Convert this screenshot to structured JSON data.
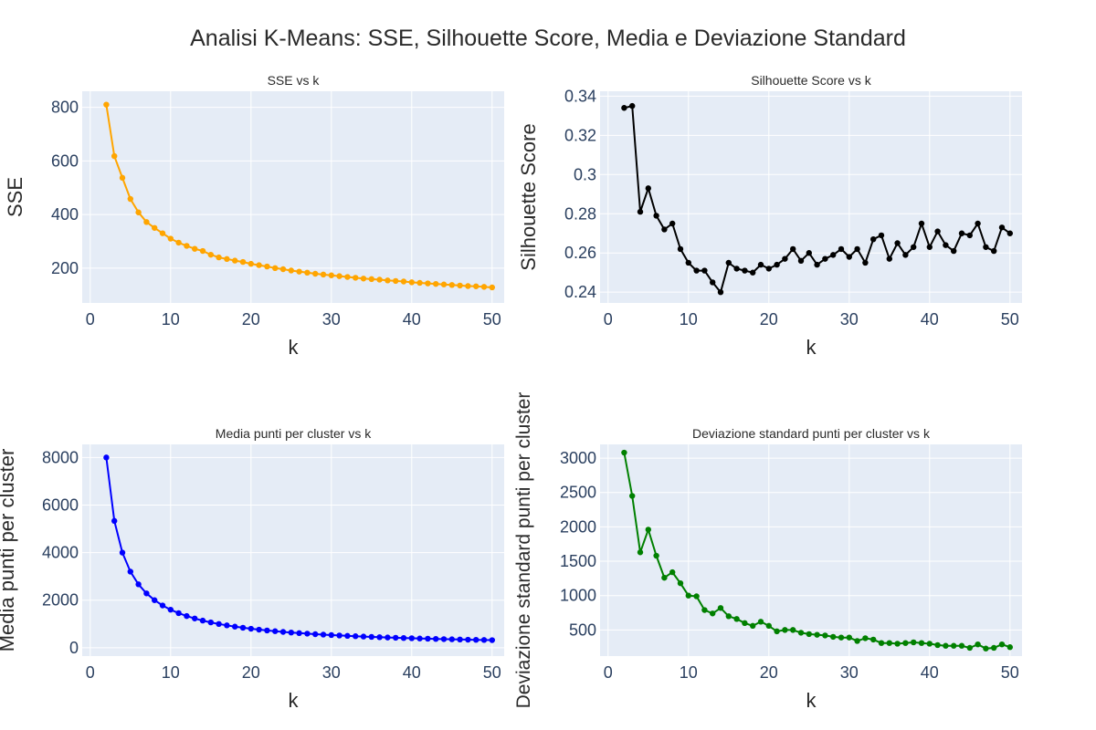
{
  "figure_title": "Analisi K-Means: SSE, Silhouette Score, Media e Deviazione Standard",
  "chart_data": [
    {
      "type": "line",
      "title": "SSE vs k",
      "xlabel": "k",
      "ylabel": "SSE",
      "color": "#FFA500",
      "xlim": [
        -1,
        51.5
      ],
      "ylim": [
        70,
        860
      ],
      "xticks": [
        0,
        10,
        20,
        30,
        40,
        50
      ],
      "yticks": [
        200,
        400,
        600,
        800
      ],
      "ytick_labels": [
        "200",
        "400",
        "600",
        "800"
      ],
      "grid": true,
      "x": [
        2,
        3,
        4,
        5,
        6,
        7,
        8,
        9,
        10,
        11,
        12,
        13,
        14,
        15,
        16,
        17,
        18,
        19,
        20,
        21,
        22,
        23,
        24,
        25,
        26,
        27,
        28,
        29,
        30,
        31,
        32,
        33,
        34,
        35,
        36,
        37,
        38,
        39,
        40,
        41,
        42,
        43,
        44,
        45,
        46,
        47,
        48,
        49,
        50
      ],
      "y": [
        810,
        618,
        537,
        458,
        408,
        372,
        350,
        330,
        310,
        295,
        283,
        272,
        264,
        250,
        240,
        234,
        228,
        223,
        216,
        211,
        206,
        200,
        196,
        191,
        187,
        183,
        179,
        176,
        173,
        170,
        167,
        164,
        161,
        159,
        157,
        154,
        152,
        150,
        147,
        145,
        143,
        141,
        139,
        137,
        135,
        133,
        132,
        130,
        128
      ]
    },
    {
      "type": "line",
      "title": "Silhouette Score vs k",
      "xlabel": "k",
      "ylabel": "Silhouette Score",
      "color": "#000000",
      "xlim": [
        -1,
        51.5
      ],
      "ylim": [
        0.2345,
        0.3425
      ],
      "xticks": [
        0,
        10,
        20,
        30,
        40,
        50
      ],
      "yticks": [
        0.24,
        0.26,
        0.28,
        0.3,
        0.32,
        0.34
      ],
      "ytick_labels": [
        "0.24",
        "0.26",
        "0.28",
        "0.3",
        "0.32",
        "0.34"
      ],
      "grid": true,
      "x": [
        2,
        3,
        4,
        5,
        6,
        7,
        8,
        9,
        10,
        11,
        12,
        13,
        14,
        15,
        16,
        17,
        18,
        19,
        20,
        21,
        22,
        23,
        24,
        25,
        26,
        27,
        28,
        29,
        30,
        31,
        32,
        33,
        34,
        35,
        36,
        37,
        38,
        39,
        40,
        41,
        42,
        43,
        44,
        45,
        46,
        47,
        48,
        49,
        50
      ],
      "y": [
        0.334,
        0.335,
        0.281,
        0.293,
        0.279,
        0.272,
        0.275,
        0.262,
        0.255,
        0.251,
        0.251,
        0.245,
        0.24,
        0.255,
        0.252,
        0.251,
        0.25,
        0.254,
        0.252,
        0.254,
        0.257,
        0.262,
        0.256,
        0.26,
        0.254,
        0.257,
        0.259,
        0.262,
        0.258,
        0.262,
        0.255,
        0.267,
        0.269,
        0.257,
        0.265,
        0.259,
        0.263,
        0.275,
        0.263,
        0.271,
        0.264,
        0.261,
        0.27,
        0.269,
        0.275,
        0.263,
        0.261,
        0.273,
        0.27
      ]
    },
    {
      "type": "line",
      "title": "Media punti per cluster vs k",
      "xlabel": "k",
      "ylabel": "Media punti per cluster",
      "color": "#0000FF",
      "xlim": [
        -1,
        51.5
      ],
      "ylim": [
        -350,
        8550
      ],
      "xticks": [
        0,
        10,
        20,
        30,
        40,
        50
      ],
      "yticks": [
        0,
        2000,
        4000,
        6000,
        8000
      ],
      "ytick_labels": [
        "0",
        "2000",
        "4000",
        "6000",
        "8000"
      ],
      "grid": true,
      "x": [
        2,
        3,
        4,
        5,
        6,
        7,
        8,
        9,
        10,
        11,
        12,
        13,
        14,
        15,
        16,
        17,
        18,
        19,
        20,
        21,
        22,
        23,
        24,
        25,
        26,
        27,
        28,
        29,
        30,
        31,
        32,
        33,
        34,
        35,
        36,
        37,
        38,
        39,
        40,
        41,
        42,
        43,
        44,
        45,
        46,
        47,
        48,
        49,
        50
      ],
      "y": [
        8000,
        5333,
        4000,
        3200,
        2667,
        2286,
        2000,
        1778,
        1600,
        1455,
        1333,
        1231,
        1143,
        1067,
        1000,
        941,
        889,
        842,
        800,
        762,
        727,
        696,
        667,
        640,
        615,
        593,
        571,
        552,
        533,
        516,
        500,
        485,
        471,
        457,
        444,
        432,
        421,
        410,
        400,
        390,
        381,
        372,
        364,
        356,
        348,
        340,
        333,
        327,
        320
      ]
    },
    {
      "type": "line",
      "title": "Deviazione standard punti per cluster vs k",
      "xlabel": "k",
      "ylabel": "Deviazione standard punti per cluster",
      "color": "#008000",
      "xlim": [
        -1,
        51.5
      ],
      "ylim": [
        120,
        3200
      ],
      "xticks": [
        0,
        10,
        20,
        30,
        40,
        50
      ],
      "yticks": [
        500,
        1000,
        1500,
        2000,
        2500,
        3000
      ],
      "ytick_labels": [
        "500",
        "1000",
        "1500",
        "2000",
        "2500",
        "3000"
      ],
      "grid": true,
      "x": [
        2,
        3,
        4,
        5,
        6,
        7,
        8,
        9,
        10,
        11,
        12,
        13,
        14,
        15,
        16,
        17,
        18,
        19,
        20,
        21,
        22,
        23,
        24,
        25,
        26,
        27,
        28,
        29,
        30,
        31,
        32,
        33,
        34,
        35,
        36,
        37,
        38,
        39,
        40,
        41,
        42,
        43,
        44,
        45,
        46,
        47,
        48,
        49,
        50
      ],
      "y": [
        3080,
        2450,
        1630,
        1960,
        1580,
        1260,
        1340,
        1180,
        1000,
        990,
        790,
        740,
        820,
        700,
        660,
        600,
        560,
        620,
        560,
        480,
        500,
        500,
        460,
        440,
        430,
        420,
        400,
        390,
        390,
        340,
        380,
        360,
        310,
        310,
        300,
        310,
        320,
        310,
        300,
        280,
        270,
        270,
        270,
        240,
        290,
        230,
        240,
        290,
        250
      ]
    }
  ]
}
